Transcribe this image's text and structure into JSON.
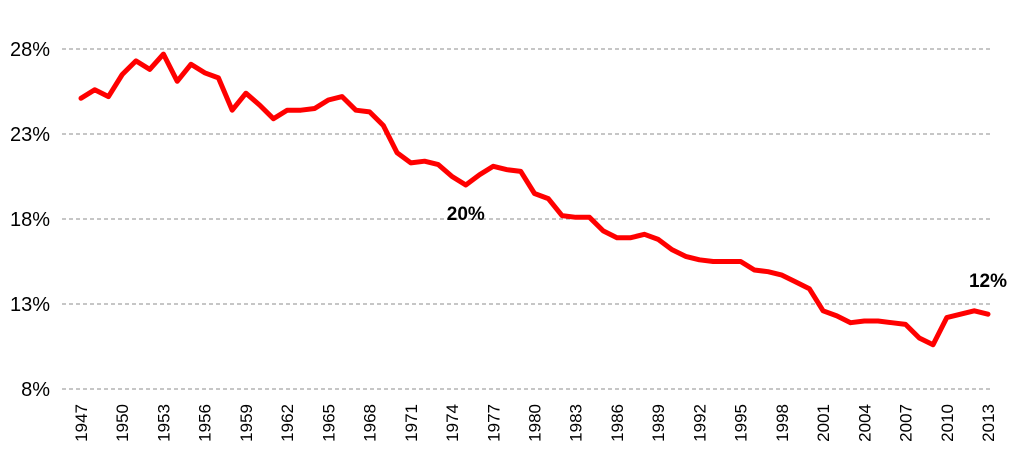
{
  "chart_data": {
    "type": "line",
    "title": "",
    "xlabel": "",
    "ylabel": "",
    "ylim": [
      8,
      28
    ],
    "y_ticks": [
      8,
      13,
      18,
      23,
      28
    ],
    "y_tick_suffix": "%",
    "grid": "horizontal-dashed",
    "x_tick_labels": [
      "1947",
      "1950",
      "1953",
      "1956",
      "1959",
      "1962",
      "1965",
      "1968",
      "1971",
      "1974",
      "1977",
      "1980",
      "1983",
      "1986",
      "1989",
      "1992",
      "1995",
      "1998",
      "2001",
      "2004",
      "2007",
      "2010",
      "2013"
    ],
    "x": [
      1947,
      1948,
      1949,
      1950,
      1951,
      1952,
      1953,
      1954,
      1955,
      1956,
      1957,
      1958,
      1959,
      1960,
      1961,
      1962,
      1963,
      1964,
      1965,
      1966,
      1967,
      1968,
      1969,
      1970,
      1971,
      1972,
      1973,
      1974,
      1975,
      1976,
      1977,
      1978,
      1979,
      1980,
      1981,
      1982,
      1983,
      1984,
      1985,
      1986,
      1987,
      1988,
      1989,
      1990,
      1991,
      1992,
      1993,
      1994,
      1995,
      1996,
      1997,
      1998,
      1999,
      2000,
      2001,
      2002,
      2003,
      2004,
      2005,
      2006,
      2007,
      2008,
      2009,
      2010,
      2011,
      2012,
      2013
    ],
    "series": [
      {
        "color": "#ff0000",
        "values": [
          25.1,
          25.6,
          25.2,
          26.5,
          27.3,
          26.8,
          27.7,
          26.1,
          27.1,
          26.6,
          26.3,
          24.4,
          25.4,
          24.7,
          23.9,
          24.4,
          24.4,
          24.5,
          25.0,
          25.2,
          24.4,
          24.3,
          23.5,
          21.9,
          21.3,
          21.4,
          21.2,
          20.5,
          20.0,
          20.6,
          21.1,
          20.9,
          20.8,
          19.5,
          19.2,
          18.2,
          18.1,
          18.1,
          17.3,
          16.9,
          16.9,
          17.1,
          16.8,
          16.2,
          15.8,
          15.6,
          15.5,
          15.5,
          15.5,
          15.0,
          14.9,
          14.7,
          14.3,
          13.9,
          12.6,
          12.3,
          11.9,
          12.0,
          12.0,
          11.9,
          11.8,
          11.0,
          10.6,
          12.2,
          12.4,
          12.6,
          12.4
        ]
      }
    ],
    "annotations": [
      {
        "text": "20%",
        "x": 1975,
        "y": 20.0,
        "position": "below"
      },
      {
        "text": "12%",
        "x": 2013,
        "y": 12.4,
        "position": "above"
      }
    ]
  }
}
